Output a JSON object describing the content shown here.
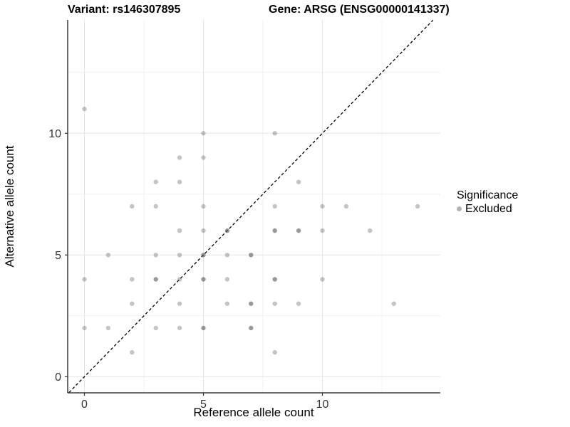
{
  "titles": {
    "variant": "Variant: rs146307895",
    "gene": "Gene: ARSG (ENSG00000141337)"
  },
  "chart_data": {
    "type": "scatter",
    "xlabel": "Reference allele count",
    "ylabel": "Alternative allele count",
    "x_ticks": [
      0,
      5,
      10
    ],
    "y_ticks": [
      0,
      5,
      10
    ],
    "x_minor": [
      2.5,
      7.5,
      12.5
    ],
    "y_minor": [
      2.5,
      7.5,
      12.5
    ],
    "xlim": [
      -0.65,
      14.65
    ],
    "ylim": [
      -0.65,
      14.65
    ],
    "grid": true,
    "identity_line": {
      "style": "dashed",
      "from": -0.65,
      "to": 14.65
    },
    "point_color_light": "#c3c3c3",
    "point_color_dark": "#999999",
    "points": [
      [
        0,
        11,
        1
      ],
      [
        5,
        10,
        1
      ],
      [
        8,
        10,
        1
      ],
      [
        4,
        9,
        1
      ],
      [
        5,
        9,
        1
      ],
      [
        3,
        8,
        1
      ],
      [
        4,
        8,
        1
      ],
      [
        9,
        8,
        1
      ],
      [
        2,
        7,
        1
      ],
      [
        3,
        7,
        1
      ],
      [
        5,
        7,
        1
      ],
      [
        8,
        7,
        1
      ],
      [
        10,
        7,
        1
      ],
      [
        11,
        7,
        1
      ],
      [
        14,
        7,
        1
      ],
      [
        4,
        6,
        1
      ],
      [
        5,
        6,
        1
      ],
      [
        6,
        6,
        2
      ],
      [
        8,
        6,
        2
      ],
      [
        9,
        6,
        2
      ],
      [
        10,
        6,
        1
      ],
      [
        12,
        6,
        1
      ],
      [
        1,
        5,
        1
      ],
      [
        3,
        5,
        1
      ],
      [
        4,
        5,
        1
      ],
      [
        5,
        5,
        2
      ],
      [
        6,
        5,
        1
      ],
      [
        7,
        5,
        2
      ],
      [
        0,
        4,
        1
      ],
      [
        2,
        4,
        1
      ],
      [
        3,
        4,
        2
      ],
      [
        4,
        4,
        1
      ],
      [
        5,
        4,
        2
      ],
      [
        6,
        4,
        1
      ],
      [
        8,
        4,
        2
      ],
      [
        10,
        4,
        1
      ],
      [
        2,
        3,
        1
      ],
      [
        4,
        3,
        1
      ],
      [
        6,
        3,
        1
      ],
      [
        7,
        3,
        2
      ],
      [
        8,
        3,
        1
      ],
      [
        9,
        3,
        1
      ],
      [
        13,
        3,
        1
      ],
      [
        0,
        2,
        1
      ],
      [
        1,
        2,
        1
      ],
      [
        3,
        2,
        1
      ],
      [
        4,
        2,
        1
      ],
      [
        5,
        2,
        2
      ],
      [
        7,
        2,
        2
      ],
      [
        2,
        1,
        1
      ],
      [
        8,
        1,
        1
      ]
    ],
    "legend": {
      "title": "Significance",
      "items": [
        {
          "label": "Excluded",
          "color": "#b3b3b3"
        }
      ],
      "position": "right"
    }
  }
}
